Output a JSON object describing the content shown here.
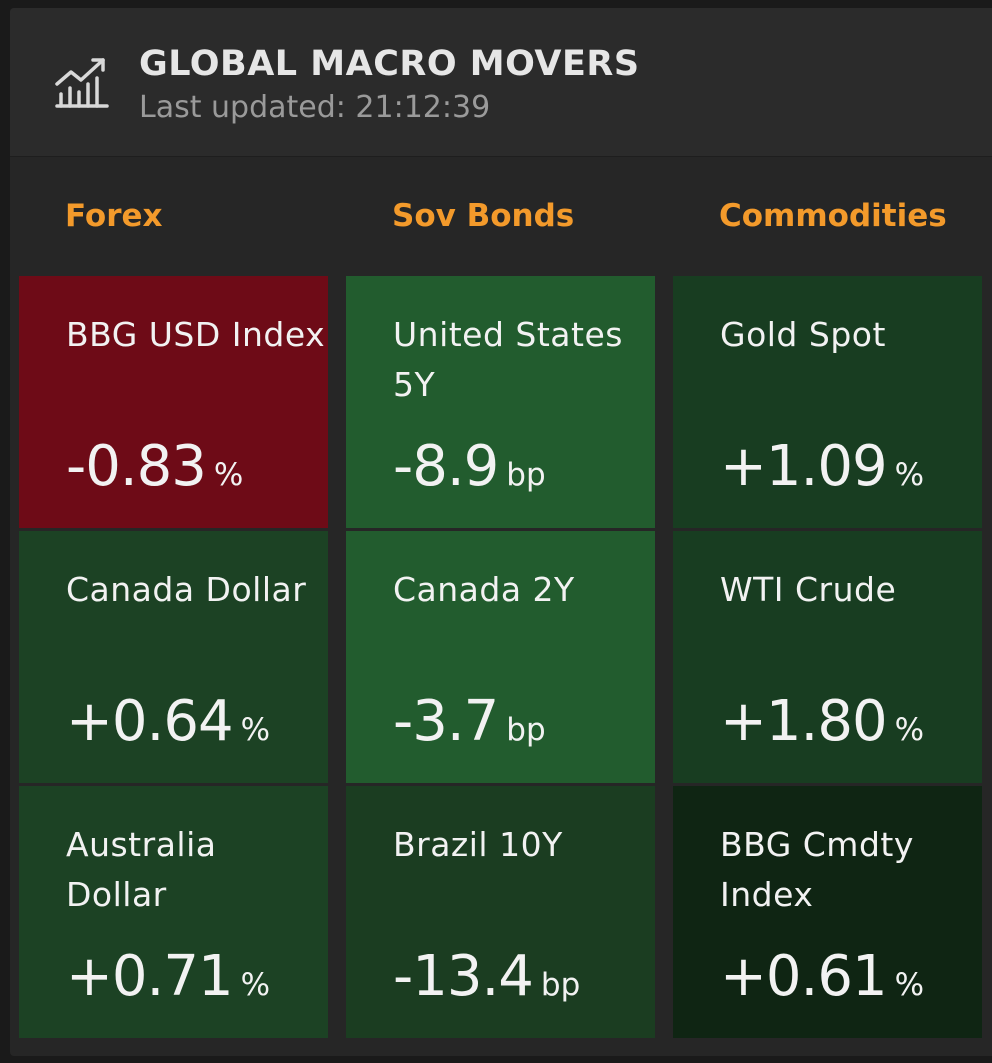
{
  "header": {
    "title": "GLOBAL MACRO MOVERS",
    "last_updated": "Last updated: 21:12:39",
    "icon": "bar-chart-trend-icon"
  },
  "colors": {
    "accent": "#f39a2b",
    "negative_strong": "#6e0b17",
    "positive_strong": "#225c2e",
    "positive_mid": "#1c4524",
    "positive_weak": "#0f2513"
  },
  "columns": [
    {
      "label": "Forex"
    },
    {
      "label": "Sov Bonds"
    },
    {
      "label": "Commodities"
    }
  ],
  "tiles": [
    {
      "name": "BBG USD Index",
      "value": "-0.83",
      "unit": "%",
      "color": "#6e0b17"
    },
    {
      "name": "United States 5Y",
      "value": "-8.9",
      "unit": "bp",
      "color": "#225c2e"
    },
    {
      "name": "Gold Spot",
      "value": "+1.09",
      "unit": "%",
      "color": "#183d21"
    },
    {
      "name": "Canada Dollar",
      "value": "+0.64",
      "unit": "%",
      "color": "#1c4224"
    },
    {
      "name": "Canada 2Y",
      "value": "-3.7",
      "unit": "bp",
      "color": "#225c2e"
    },
    {
      "name": "WTI Crude",
      "value": "+1.80",
      "unit": "%",
      "color": "#183d21"
    },
    {
      "name": "Australia Dollar",
      "value": "+0.71",
      "unit": "%",
      "color": "#1c4224"
    },
    {
      "name": "Brazil 10Y",
      "value": "-13.4",
      "unit": "bp",
      "color": "#1b3d21"
    },
    {
      "name": "BBG Cmdty Index",
      "value": "+0.61",
      "unit": "%",
      "color": "#0f2513"
    }
  ]
}
